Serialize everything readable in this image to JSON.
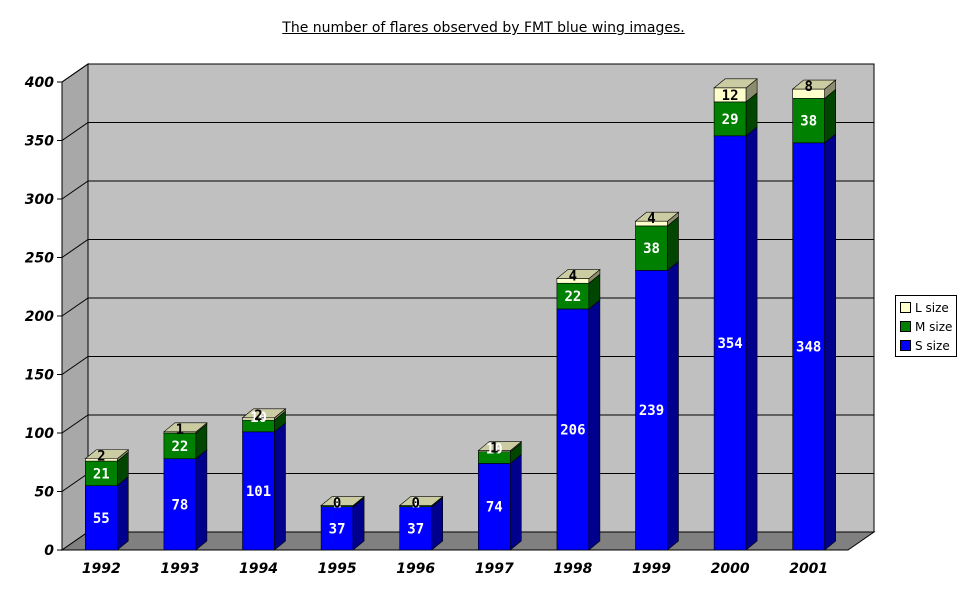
{
  "chart_data": {
    "type": "bar",
    "stacked": true,
    "three_d": true,
    "title": "The number of flares observed by FMT blue wing images.",
    "categories": [
      "1992",
      "1993",
      "1994",
      "1995",
      "1996",
      "1997",
      "1998",
      "1999",
      "2000",
      "2001"
    ],
    "series": [
      {
        "name": "S size",
        "color": "#0000ff",
        "values": [
          55,
          78,
          101,
          37,
          37,
          74,
          206,
          239,
          354,
          348
        ]
      },
      {
        "name": "M size",
        "color": "#008000",
        "values": [
          21,
          22,
          10,
          1,
          1,
          10,
          22,
          38,
          29,
          38
        ]
      },
      {
        "name": "L size",
        "color": "#ffffcc",
        "values": [
          2,
          1,
          2,
          0,
          0,
          1,
          4,
          4,
          12,
          8
        ]
      }
    ],
    "yticks": [
      "0",
      "50",
      "100",
      "150",
      "200",
      "250",
      "300",
      "350",
      "400"
    ],
    "ylim": [
      0,
      400
    ],
    "grid": true,
    "legend_position": "right",
    "legend_order": [
      "L size",
      "M size",
      "S size"
    ],
    "colors": {
      "wall": "#c0c0c0",
      "floor": "#808080"
    }
  }
}
